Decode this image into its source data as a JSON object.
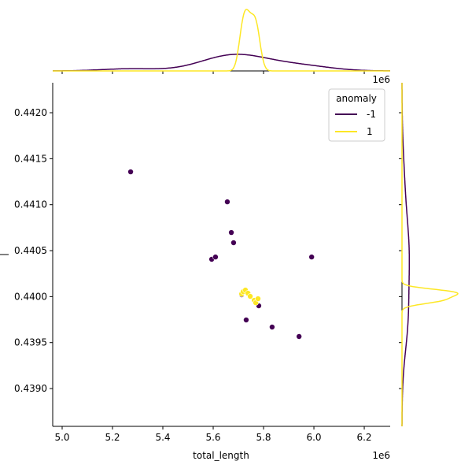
{
  "chart_data": {
    "type": "scatter",
    "xlabel": "total_length",
    "ylabel": "|",
    "x_offset": "1e6",
    "xlim": [
      4.9625,
      6.303
    ],
    "ylim": [
      0.438589,
      0.442326
    ],
    "xticks": [
      {
        "value": 5.0,
        "label": "5.0"
      },
      5.2,
      5.4,
      5.6,
      5.8,
      {
        "value": 6.0,
        "label": "6.0"
      },
      6.2
    ],
    "yticks": [
      {
        "value": 0.439,
        "label": "0.4390"
      },
      0.4395,
      {
        "value": 0.44,
        "label": "0.4400"
      },
      0.4405,
      {
        "value": 0.441,
        "label": "0.4410"
      },
      0.4415,
      {
        "value": 0.442,
        "label": "0.4420"
      }
    ],
    "legend_title": "anomaly",
    "legend_position": "upper right",
    "marginal": "kde",
    "series": [
      {
        "name": "-1",
        "color": "#440154",
        "x": [
          5.272,
          5.656,
          5.672,
          5.681,
          5.594,
          5.609,
          5.991,
          5.731,
          5.834,
          5.941,
          5.781,
          5.713
        ],
        "y": [
          0.441357,
          0.441031,
          0.440697,
          0.440586,
          0.440406,
          0.440431,
          0.440431,
          0.439746,
          0.439669,
          0.439566,
          0.4399,
          0.44002
        ]
      },
      {
        "name": "1",
        "color": "#fde725",
        "x": [
          5.713,
          5.719,
          5.728,
          5.738,
          5.747,
          5.763,
          5.769,
          5.778
        ],
        "y": [
          0.440029,
          0.440054,
          0.440071,
          0.440037,
          0.440003,
          0.43996,
          0.439934,
          0.439977
        ]
      }
    ]
  }
}
